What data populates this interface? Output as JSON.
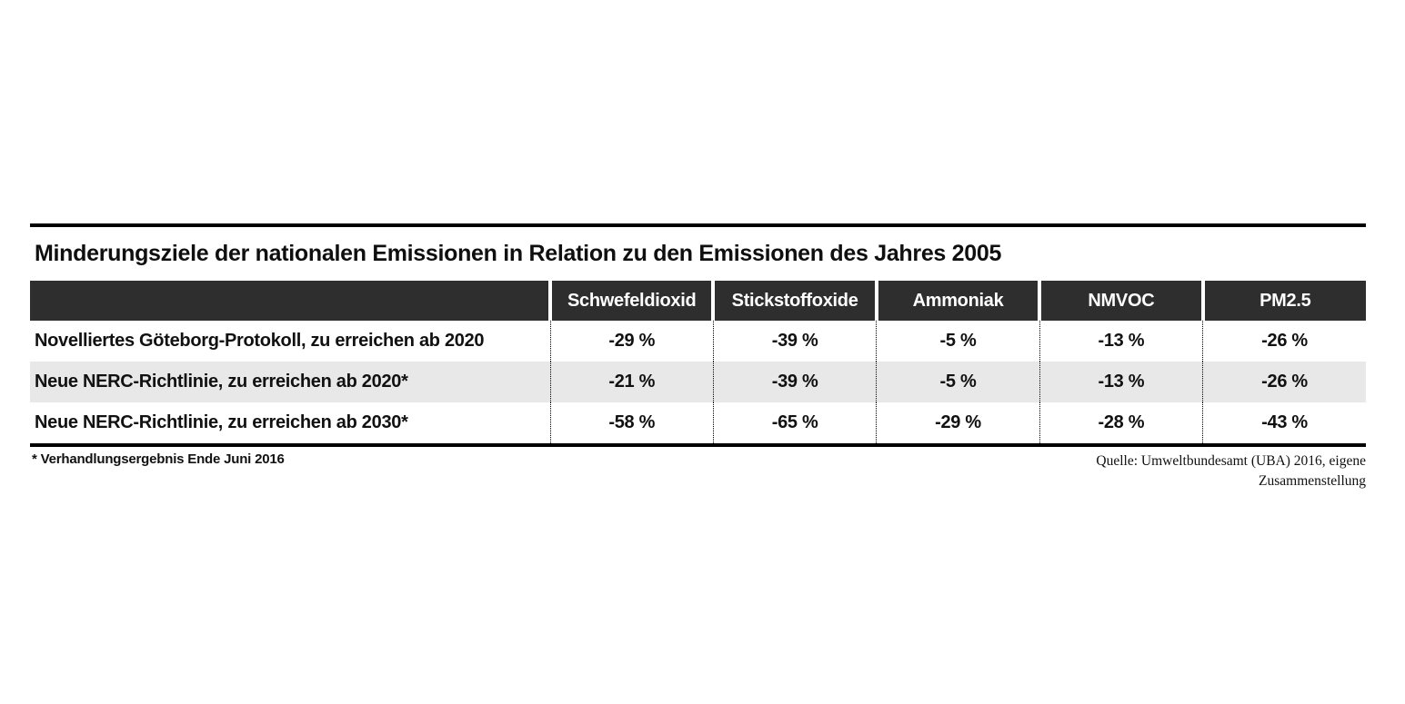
{
  "figure": {
    "title": "Minderungsziele der nationalen Emissionen in Relation zu den Emissionen des Jahres 2005",
    "columns": [
      "Schwefeldioxid",
      "Stickstoffoxide",
      "Ammoniak",
      "NMVOC",
      "PM2.5"
    ],
    "rows": [
      {
        "label": "Novelliertes Göteborg-Protokoll, zu erreichen ab 2020",
        "values": [
          "-29 %",
          "-39 %",
          "-5 %",
          "-13 %",
          "-26 %"
        ]
      },
      {
        "label": "Neue NERC-Richtlinie, zu erreichen ab 2020*",
        "values": [
          "-21 %",
          "-39 %",
          "-5 %",
          "-13 %",
          "-26 %"
        ]
      },
      {
        "label": "Neue NERC-Richtlinie, zu erreichen ab 2030*",
        "values": [
          "-58 %",
          "-65 %",
          "-29 %",
          "-28 %",
          "-43 %"
        ]
      }
    ],
    "footnote": "* Verhandlungsergebnis Ende Juni 2016",
    "source_line1": "Quelle: Umweltbundesamt (UBA) 2016, eigene",
    "source_line2": "Zusammenstellung"
  },
  "colors": {
    "header_bg": "#2e2e2e",
    "header_text": "#ffffff",
    "row_alt_bg": "#e8e8e8",
    "rule": "#000000",
    "text": "#111111"
  },
  "chart_data": {
    "type": "table",
    "title": "Minderungsziele der nationalen Emissionen in Relation zu den Emissionen des Jahres 2005",
    "columns": [
      "",
      "Schwefeldioxid",
      "Stickstoffoxide",
      "Ammoniak",
      "NMVOC",
      "PM2.5"
    ],
    "unit": "percent change relative to 2005 emissions",
    "rows": [
      {
        "label": "Novelliertes Göteborg-Protokoll, zu erreichen ab 2020",
        "values_pct": [
          -29,
          -39,
          -5,
          -13,
          -26
        ]
      },
      {
        "label": "Neue NERC-Richtlinie, zu erreichen ab 2020*",
        "values_pct": [
          -21,
          -39,
          -5,
          -13,
          -26
        ]
      },
      {
        "label": "Neue NERC-Richtlinie, zu erreichen ab 2030*",
        "values_pct": [
          -58,
          -65,
          -29,
          -28,
          -43
        ]
      }
    ],
    "footnote": "* Verhandlungsergebnis Ende Juni 2016",
    "source": "Quelle: Umweltbundesamt (UBA) 2016, eigene Zusammenstellung",
    "layout": {
      "header_style": "dark band with white gaps between column headers",
      "row_striping": "second row shaded light gray",
      "column_separators": "dotted vertical lines in body"
    }
  }
}
